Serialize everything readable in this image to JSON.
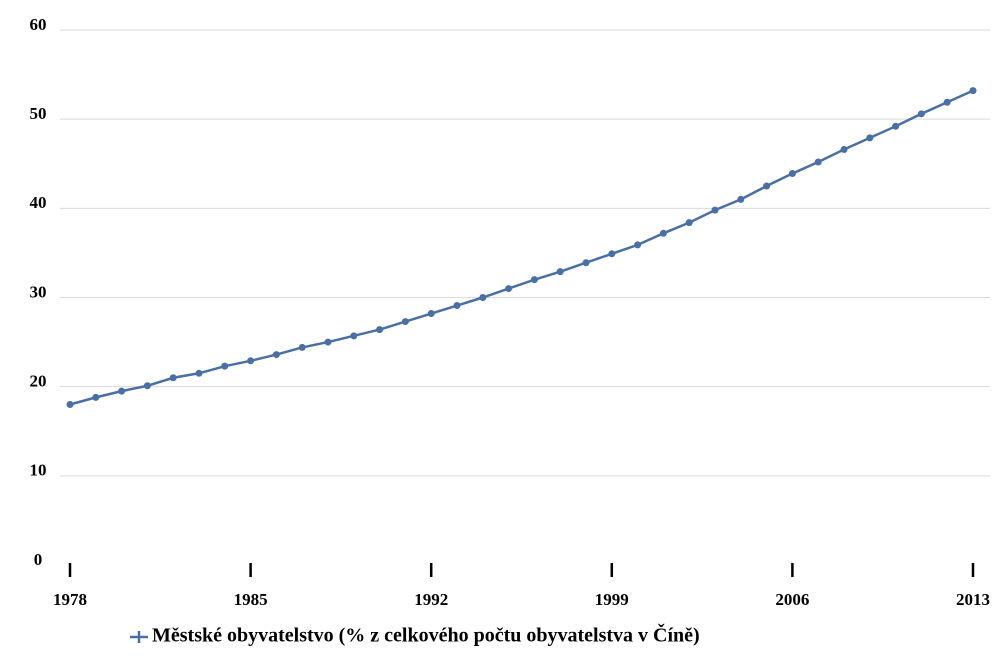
{
  "chart_data": {
    "type": "line",
    "x": [
      1978,
      1979,
      1980,
      1981,
      1982,
      1983,
      1984,
      1985,
      1986,
      1987,
      1988,
      1989,
      1990,
      1991,
      1992,
      1993,
      1994,
      1995,
      1996,
      1997,
      1998,
      1999,
      2000,
      2001,
      2002,
      2003,
      2004,
      2005,
      2006,
      2007,
      2008,
      2009,
      2010,
      2011,
      2012,
      2013
    ],
    "series": [
      {
        "name": "Městské obyvatelstvo (% z celkového počtu obyvatelstva v Číně)",
        "color": "#4a6fa5",
        "values": [
          18.0,
          18.8,
          19.5,
          20.1,
          21.0,
          21.5,
          22.3,
          22.9,
          23.6,
          24.4,
          25.0,
          25.7,
          26.4,
          27.3,
          28.2,
          29.1,
          30.0,
          31.0,
          32.0,
          32.9,
          33.9,
          34.9,
          35.9,
          37.2,
          38.4,
          39.8,
          41.0,
          42.5,
          43.9,
          45.2,
          46.6,
          47.9,
          49.2,
          50.6,
          51.9,
          53.2
        ]
      }
    ],
    "xlim": [
      1978,
      2013
    ],
    "xticks": [
      1978,
      1985,
      1992,
      1999,
      2006,
      2013
    ],
    "ylim": [
      0,
      60
    ],
    "yticks": [
      0,
      10,
      20,
      30,
      40,
      50,
      60
    ],
    "grid": true,
    "legend": "bottom"
  }
}
